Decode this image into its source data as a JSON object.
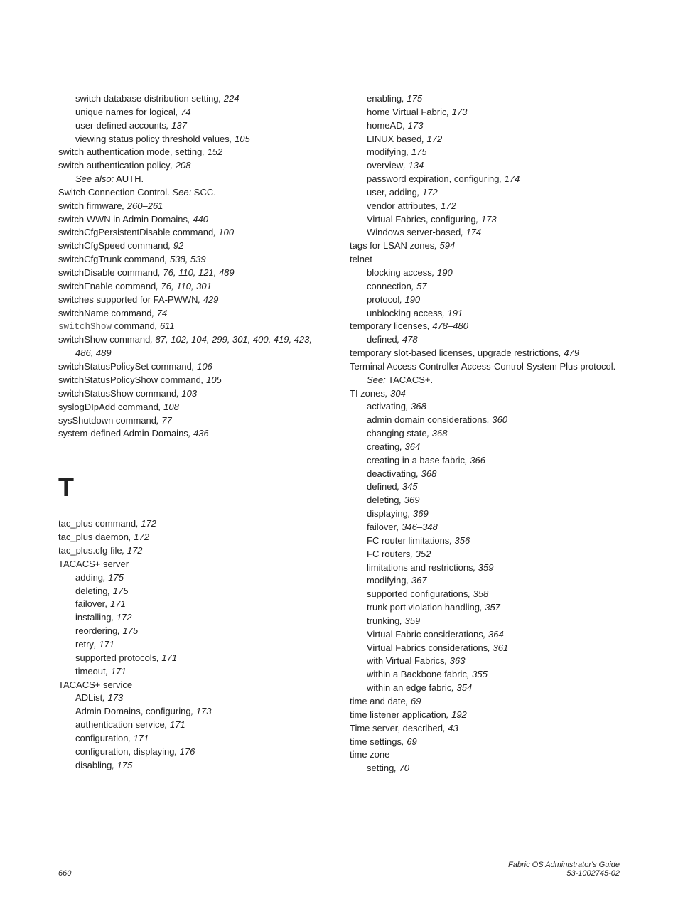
{
  "col1": {
    "items": [
      {
        "indent": 1,
        "plain": "switch database distribution setting",
        "ref": ", 224"
      },
      {
        "indent": 1,
        "plain": "unique names for logical",
        "ref": ", 74"
      },
      {
        "indent": 1,
        "plain": "user-defined accounts",
        "ref": ", 137"
      },
      {
        "indent": 1,
        "plain": "viewing status policy threshold values",
        "ref": ", 105"
      },
      {
        "indent": 0,
        "plain": "switch authentication mode, setting",
        "ref": ", 152"
      },
      {
        "indent": 0,
        "plain": "switch authentication policy",
        "ref": ", 208"
      },
      {
        "indent": 1,
        "prefix_i": "See also:",
        "plain": " AUTH."
      },
      {
        "indent": 0,
        "plain": "Switch Connection Control. ",
        "see_i": "See:",
        "see_plain": " SCC."
      },
      {
        "indent": 0,
        "plain": "switch firmware",
        "ref": ", 260–261"
      },
      {
        "indent": 0,
        "plain": "switch WWN in Admin Domains",
        "ref": ", 440"
      },
      {
        "indent": 0,
        "plain": "switchCfgPersistentDisable command",
        "ref": ", 100"
      },
      {
        "indent": 0,
        "plain": "switchCfgSpeed command",
        "ref": ", 92"
      },
      {
        "indent": 0,
        "plain": "switchCfgTrunk command",
        "ref": ", 538, 539"
      },
      {
        "indent": 0,
        "plain": "switchDisable command",
        "ref": ", 76, 110, 121, 489"
      },
      {
        "indent": 0,
        "plain": "switchEnable command",
        "ref": ", 76, 110, 301"
      },
      {
        "indent": 0,
        "plain": "switches supported for FA-PWWN",
        "ref": ", 429"
      },
      {
        "indent": 0,
        "plain": "switchName command",
        "ref": ", 74"
      },
      {
        "indent": 0,
        "code": "switchShow",
        "plain": " command",
        "ref": ", 611"
      },
      {
        "indent": 0,
        "plain": "switchShow command",
        "ref": ", 87, 102, 104, 299, 301, 400, 419, 423, 486, 489",
        "wrap_indent": 1
      },
      {
        "indent": 0,
        "plain": "switchStatusPolicySet command",
        "ref": ", 106"
      },
      {
        "indent": 0,
        "plain": "switchStatusPolicyShow command",
        "ref": ", 105"
      },
      {
        "indent": 0,
        "plain": "switchStatusShow command",
        "ref": ", 103"
      },
      {
        "indent": 0,
        "plain": "syslogDIpAdd command",
        "ref": ", 108"
      },
      {
        "indent": 0,
        "plain": "sysShutdown command",
        "ref": ", 77"
      },
      {
        "indent": 0,
        "plain": "system-defined Admin Domains",
        "ref": ", 436"
      }
    ],
    "section_header": "T",
    "items2": [
      {
        "indent": 0,
        "plain": "tac_plus command",
        "ref": ", 172"
      },
      {
        "indent": 0,
        "plain": "tac_plus daemon",
        "ref": ", 172"
      },
      {
        "indent": 0,
        "plain": "tac_plus.cfg file",
        "ref": ", 172"
      },
      {
        "indent": 0,
        "plain": "TACACS+ server"
      },
      {
        "indent": 1,
        "plain": "adding",
        "ref": ", 175"
      },
      {
        "indent": 1,
        "plain": "deleting",
        "ref": ", 175"
      },
      {
        "indent": 1,
        "plain": "failover",
        "ref": ", 171"
      },
      {
        "indent": 1,
        "plain": "installing",
        "ref": ", 172"
      },
      {
        "indent": 1,
        "plain": "reordering",
        "ref": ", 175"
      },
      {
        "indent": 1,
        "plain": "retry",
        "ref": ", 171"
      },
      {
        "indent": 1,
        "plain": "supported protocols",
        "ref": ", 171"
      },
      {
        "indent": 1,
        "plain": "timeout",
        "ref": ", 171"
      },
      {
        "indent": 0,
        "plain": "TACACS+ service"
      },
      {
        "indent": 1,
        "plain": "ADList",
        "ref": ", 173"
      },
      {
        "indent": 1,
        "plain": "Admin Domains, configuring",
        "ref": ", 173"
      },
      {
        "indent": 1,
        "plain": "authentication service",
        "ref": ", 171"
      },
      {
        "indent": 1,
        "plain": "configuration",
        "ref": ", 171"
      },
      {
        "indent": 1,
        "plain": "configuration, displaying",
        "ref": ", 176"
      },
      {
        "indent": 1,
        "plain": "disabling",
        "ref": ", 175"
      }
    ]
  },
  "col2": {
    "items": [
      {
        "indent": 1,
        "plain": "enabling",
        "ref": ", 175"
      },
      {
        "indent": 1,
        "plain": "home Virtual Fabric",
        "ref": ", 173"
      },
      {
        "indent": 1,
        "plain": "homeAD",
        "ref": ", 173"
      },
      {
        "indent": 1,
        "plain": "LINUX based",
        "ref": ", 172"
      },
      {
        "indent": 1,
        "plain": "modifying",
        "ref": ", 175"
      },
      {
        "indent": 1,
        "plain": "overview",
        "ref": ", 134"
      },
      {
        "indent": 1,
        "plain": "password expiration, configuring",
        "ref": ", 174"
      },
      {
        "indent": 1,
        "plain": "user, adding",
        "ref": ", 172"
      },
      {
        "indent": 1,
        "plain": "vendor attributes",
        "ref": ", 172"
      },
      {
        "indent": 1,
        "plain": "Virtual Fabrics, configuring",
        "ref": ", 173"
      },
      {
        "indent": 1,
        "plain": "Windows server-based",
        "ref": ", 174"
      },
      {
        "indent": 0,
        "plain": "tags for LSAN zones",
        "ref": ", 594"
      },
      {
        "indent": 0,
        "plain": "telnet"
      },
      {
        "indent": 1,
        "plain": "blocking access",
        "ref": ", 190"
      },
      {
        "indent": 1,
        "plain": "connection",
        "ref": ", 57"
      },
      {
        "indent": 1,
        "plain": "protocol",
        "ref": ", 190"
      },
      {
        "indent": 1,
        "plain": "unblocking access",
        "ref": ", 191"
      },
      {
        "indent": 0,
        "plain": "temporary licenses",
        "ref": ", 478–480"
      },
      {
        "indent": 1,
        "plain": "defined",
        "ref": ", 478"
      },
      {
        "indent": 0,
        "plain": "temporary slot-based licenses, upgrade restrictions",
        "ref": ", 479"
      },
      {
        "indent": 0,
        "plain": "Terminal Access Controller Access-Control System Plus protocol. ",
        "see_i": "See:",
        "see_plain": " TACACS+.",
        "wrap_indent": 1
      },
      {
        "indent": 0,
        "plain": "TI zones",
        "ref": ", 304"
      },
      {
        "indent": 1,
        "plain": "activating",
        "ref": ", 368"
      },
      {
        "indent": 1,
        "plain": "admin domain considerations",
        "ref": ", 360"
      },
      {
        "indent": 1,
        "plain": "changing state",
        "ref": ", 368"
      },
      {
        "indent": 1,
        "plain": "creating",
        "ref": ", 364"
      },
      {
        "indent": 1,
        "plain": "creating in a base fabric",
        "ref": ", 366"
      },
      {
        "indent": 1,
        "plain": "deactivating",
        "ref": ", 368"
      },
      {
        "indent": 1,
        "plain": "defined",
        "ref": ", 345"
      },
      {
        "indent": 1,
        "plain": "deleting",
        "ref": ", 369"
      },
      {
        "indent": 1,
        "plain": "displaying",
        "ref": ", 369"
      },
      {
        "indent": 1,
        "plain": "failover",
        "ref": ", 346–348"
      },
      {
        "indent": 1,
        "plain": "FC router limitations",
        "ref": ", 356"
      },
      {
        "indent": 1,
        "plain": "FC routers",
        "ref": ", 352"
      },
      {
        "indent": 1,
        "plain": "limitations and restrictions",
        "ref": ", 359"
      },
      {
        "indent": 1,
        "plain": "modifying",
        "ref": ", 367"
      },
      {
        "indent": 1,
        "plain": "supported configurations",
        "ref": ", 358"
      },
      {
        "indent": 1,
        "plain": "trunk port violation handling",
        "ref": ", 357"
      },
      {
        "indent": 1,
        "plain": "trunking",
        "ref": ", 359"
      },
      {
        "indent": 1,
        "plain": "Virtual Fabric considerations",
        "ref": ", 364"
      },
      {
        "indent": 1,
        "plain": "Virtual Fabrics considerations",
        "ref": ", 361"
      },
      {
        "indent": 1,
        "plain": "with Virtual Fabrics",
        "ref": ", 363"
      },
      {
        "indent": 1,
        "plain": "within a Backbone fabric",
        "ref": ", 355"
      },
      {
        "indent": 1,
        "plain": "within an edge fabric",
        "ref": ", 354"
      },
      {
        "indent": 0,
        "plain": "time and date",
        "ref": ", 69"
      },
      {
        "indent": 0,
        "plain": "time listener application",
        "ref": ", 192"
      },
      {
        "indent": 0,
        "plain": "Time server, described",
        "ref": ", 43"
      },
      {
        "indent": 0,
        "plain": "time settings",
        "ref": ", 69"
      },
      {
        "indent": 0,
        "plain": "time zone"
      },
      {
        "indent": 1,
        "plain": "setting",
        "ref": ", 70"
      }
    ]
  },
  "footer": {
    "page_no": "660",
    "title": "Fabric OS Administrator's Guide",
    "docno": "53-1002745-02"
  }
}
